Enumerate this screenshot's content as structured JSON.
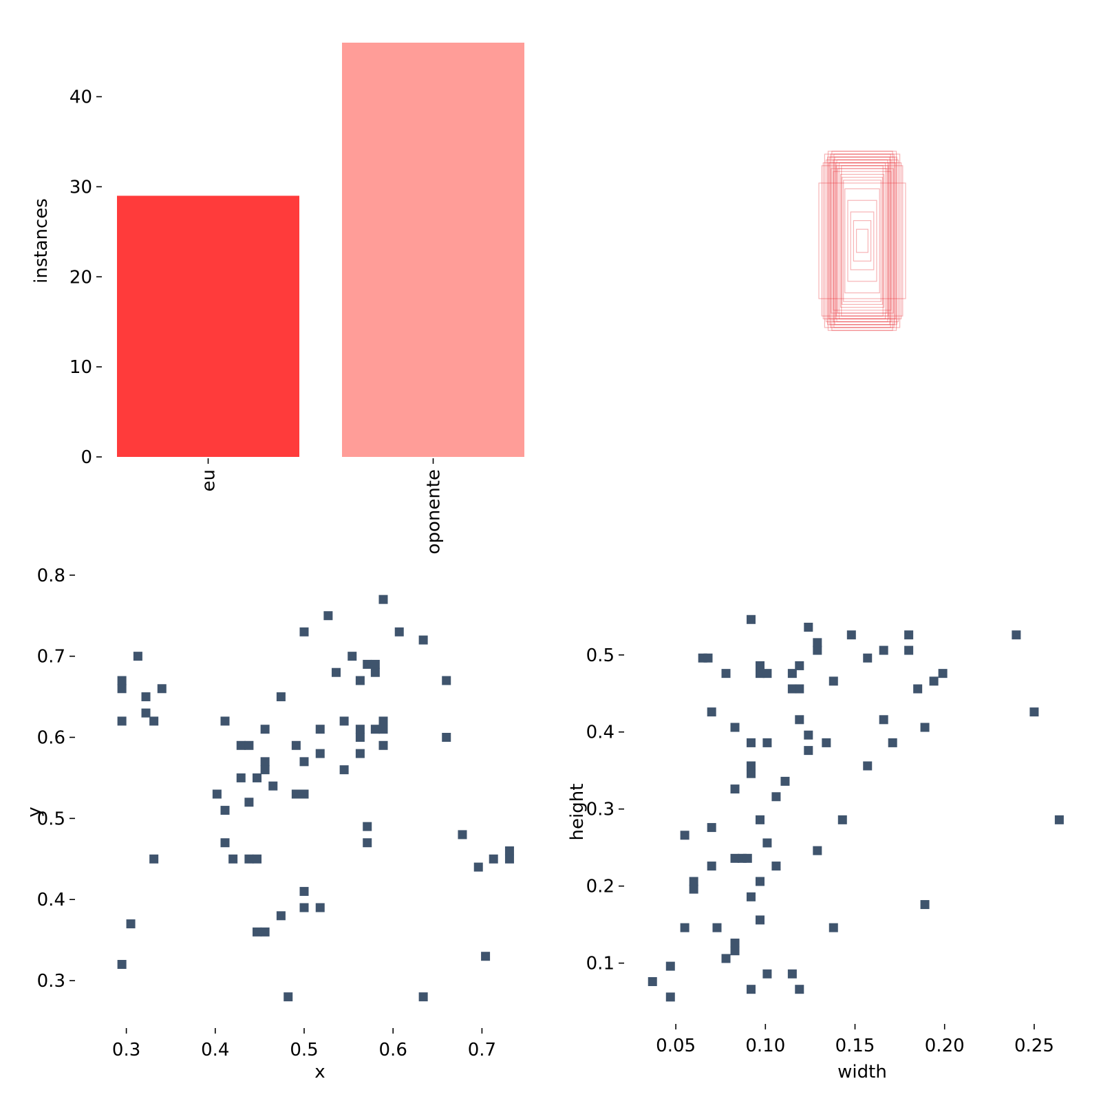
{
  "chart_data": [
    {
      "type": "bar",
      "categories": [
        "eu",
        "oponente"
      ],
      "values": [
        29,
        46
      ],
      "colors": [
        "#ff3b3b",
        "#ff9d98"
      ],
      "xlabel": "",
      "ylabel": "instances",
      "ylim": [
        0,
        46
      ],
      "yticks": [
        0,
        10,
        20,
        30,
        40
      ],
      "ytick_labels": [
        "0",
        "10",
        "20",
        "30",
        "40"
      ],
      "grid": false
    },
    {
      "type": "box_overlay",
      "description_color": "#e8262c",
      "boxes": [
        [
          0.1,
          0.28
        ],
        [
          0.11,
          0.3
        ],
        [
          0.09,
          0.26
        ],
        [
          0.12,
          0.29
        ],
        [
          0.08,
          0.27
        ],
        [
          0.13,
          0.3
        ],
        [
          0.1,
          0.24
        ],
        [
          0.07,
          0.22
        ],
        [
          0.105,
          0.31
        ],
        [
          0.095,
          0.29
        ],
        [
          0.115,
          0.27
        ],
        [
          0.06,
          0.18
        ],
        [
          0.05,
          0.14
        ],
        [
          0.04,
          0.1
        ],
        [
          0.03,
          0.07
        ],
        [
          0.02,
          0.04
        ],
        [
          0.14,
          0.26
        ],
        [
          0.15,
          0.2
        ],
        [
          0.085,
          0.25
        ],
        [
          0.125,
          0.28
        ],
        [
          0.075,
          0.23
        ],
        [
          0.065,
          0.21
        ],
        [
          0.135,
          0.27
        ],
        [
          0.112,
          0.29
        ],
        [
          0.098,
          0.3
        ],
        [
          0.088,
          0.28
        ],
        [
          0.118,
          0.31
        ],
        [
          0.072,
          0.26
        ],
        [
          0.108,
          0.25
        ],
        [
          0.092,
          0.27
        ]
      ]
    },
    {
      "type": "scatter",
      "xlabel": "x",
      "ylabel": "y",
      "xlim": [
        0.25,
        0.75
      ],
      "ylim": [
        0.25,
        0.81
      ],
      "xticks": [
        0.3,
        0.4,
        0.5,
        0.6,
        0.7
      ],
      "xtick_labels": [
        "0.3",
        "0.4",
        "0.5",
        "0.6",
        "0.7"
      ],
      "yticks": [
        0.3,
        0.4,
        0.5,
        0.6,
        0.7,
        0.8
      ],
      "ytick_labels": [
        "0.3",
        "0.4",
        "0.5",
        "0.6",
        "0.7",
        "0.8"
      ],
      "color": "#3f546d",
      "points": [
        [
          0.295,
          0.32
        ],
        [
          0.305,
          0.37
        ],
        [
          0.295,
          0.62
        ],
        [
          0.295,
          0.66
        ],
        [
          0.295,
          0.67
        ],
        [
          0.313,
          0.7
        ],
        [
          0.322,
          0.65
        ],
        [
          0.322,
          0.63
        ],
        [
          0.331,
          0.62
        ],
        [
          0.34,
          0.66
        ],
        [
          0.331,
          0.45
        ],
        [
          0.402,
          0.53
        ],
        [
          0.411,
          0.51
        ],
        [
          0.411,
          0.47
        ],
        [
          0.411,
          0.62
        ],
        [
          0.42,
          0.45
        ],
        [
          0.429,
          0.59
        ],
        [
          0.438,
          0.59
        ],
        [
          0.429,
          0.55
        ],
        [
          0.438,
          0.52
        ],
        [
          0.438,
          0.45
        ],
        [
          0.447,
          0.45
        ],
        [
          0.447,
          0.55
        ],
        [
          0.447,
          0.36
        ],
        [
          0.456,
          0.36
        ],
        [
          0.456,
          0.57
        ],
        [
          0.456,
          0.56
        ],
        [
          0.456,
          0.61
        ],
        [
          0.465,
          0.54
        ],
        [
          0.474,
          0.65
        ],
        [
          0.474,
          0.38
        ],
        [
          0.482,
          0.28
        ],
        [
          0.491,
          0.53
        ],
        [
          0.5,
          0.53
        ],
        [
          0.491,
          0.59
        ],
        [
          0.5,
          0.57
        ],
        [
          0.5,
          0.41
        ],
        [
          0.5,
          0.39
        ],
        [
          0.5,
          0.73
        ],
        [
          0.518,
          0.61
        ],
        [
          0.518,
          0.58
        ],
        [
          0.518,
          0.39
        ],
        [
          0.527,
          0.75
        ],
        [
          0.536,
          0.68
        ],
        [
          0.545,
          0.62
        ],
        [
          0.545,
          0.56
        ],
        [
          0.554,
          0.7
        ],
        [
          0.563,
          0.67
        ],
        [
          0.563,
          0.61
        ],
        [
          0.563,
          0.6
        ],
        [
          0.563,
          0.58
        ],
        [
          0.571,
          0.69
        ],
        [
          0.571,
          0.49
        ],
        [
          0.571,
          0.47
        ],
        [
          0.58,
          0.69
        ],
        [
          0.58,
          0.68
        ],
        [
          0.58,
          0.61
        ],
        [
          0.589,
          0.62
        ],
        [
          0.589,
          0.61
        ],
        [
          0.589,
          0.59
        ],
        [
          0.589,
          0.77
        ],
        [
          0.607,
          0.73
        ],
        [
          0.634,
          0.72
        ],
        [
          0.634,
          0.28
        ],
        [
          0.66,
          0.67
        ],
        [
          0.66,
          0.6
        ],
        [
          0.678,
          0.48
        ],
        [
          0.696,
          0.44
        ],
        [
          0.704,
          0.33
        ],
        [
          0.713,
          0.45
        ],
        [
          0.731,
          0.46
        ],
        [
          0.731,
          0.45
        ]
      ]
    },
    {
      "type": "scatter",
      "xlabel": "width",
      "ylabel": "height",
      "xlim": [
        0.025,
        0.27
      ],
      "ylim": [
        0.03,
        0.565
      ],
      "xticks": [
        0.05,
        0.1,
        0.15,
        0.2,
        0.25
      ],
      "xtick_labels": [
        "0.05",
        "0.10",
        "0.15",
        "0.20",
        "0.25"
      ],
      "yticks": [
        0.1,
        0.2,
        0.3,
        0.4,
        0.5
      ],
      "ytick_labels": [
        "0.1",
        "0.2",
        "0.3",
        "0.4",
        "0.5"
      ],
      "color": "#3f546d",
      "points": [
        [
          0.037,
          0.076
        ],
        [
          0.047,
          0.056
        ],
        [
          0.047,
          0.096
        ],
        [
          0.055,
          0.146
        ],
        [
          0.055,
          0.266
        ],
        [
          0.06,
          0.196
        ],
        [
          0.06,
          0.206
        ],
        [
          0.065,
          0.496
        ],
        [
          0.068,
          0.496
        ],
        [
          0.07,
          0.226
        ],
        [
          0.07,
          0.276
        ],
        [
          0.07,
          0.426
        ],
        [
          0.073,
          0.146
        ],
        [
          0.078,
          0.106
        ],
        [
          0.078,
          0.476
        ],
        [
          0.083,
          0.116
        ],
        [
          0.083,
          0.126
        ],
        [
          0.083,
          0.236
        ],
        [
          0.083,
          0.326
        ],
        [
          0.083,
          0.406
        ],
        [
          0.087,
          0.236
        ],
        [
          0.09,
          0.236
        ],
        [
          0.092,
          0.066
        ],
        [
          0.092,
          0.186
        ],
        [
          0.092,
          0.346
        ],
        [
          0.092,
          0.356
        ],
        [
          0.092,
          0.386
        ],
        [
          0.092,
          0.546
        ],
        [
          0.097,
          0.156
        ],
        [
          0.097,
          0.206
        ],
        [
          0.097,
          0.286
        ],
        [
          0.097,
          0.476
        ],
        [
          0.097,
          0.486
        ],
        [
          0.101,
          0.086
        ],
        [
          0.101,
          0.256
        ],
        [
          0.101,
          0.386
        ],
        [
          0.101,
          0.476
        ],
        [
          0.106,
          0.226
        ],
        [
          0.106,
          0.316
        ],
        [
          0.111,
          0.336
        ],
        [
          0.115,
          0.086
        ],
        [
          0.115,
          0.456
        ],
        [
          0.115,
          0.476
        ],
        [
          0.119,
          0.066
        ],
        [
          0.119,
          0.416
        ],
        [
          0.119,
          0.456
        ],
        [
          0.119,
          0.486
        ],
        [
          0.124,
          0.376
        ],
        [
          0.124,
          0.396
        ],
        [
          0.124,
          0.536
        ],
        [
          0.129,
          0.246
        ],
        [
          0.129,
          0.506
        ],
        [
          0.129,
          0.516
        ],
        [
          0.134,
          0.386
        ],
        [
          0.138,
          0.146
        ],
        [
          0.138,
          0.466
        ],
        [
          0.143,
          0.286
        ],
        [
          0.148,
          0.526
        ],
        [
          0.157,
          0.356
        ],
        [
          0.157,
          0.496
        ],
        [
          0.166,
          0.416
        ],
        [
          0.166,
          0.506
        ],
        [
          0.171,
          0.386
        ],
        [
          0.18,
          0.506
        ],
        [
          0.18,
          0.526
        ],
        [
          0.185,
          0.456
        ],
        [
          0.189,
          0.176
        ],
        [
          0.189,
          0.406
        ],
        [
          0.194,
          0.466
        ],
        [
          0.199,
          0.476
        ],
        [
          0.24,
          0.526
        ],
        [
          0.25,
          0.426
        ],
        [
          0.264,
          0.286
        ]
      ]
    }
  ]
}
